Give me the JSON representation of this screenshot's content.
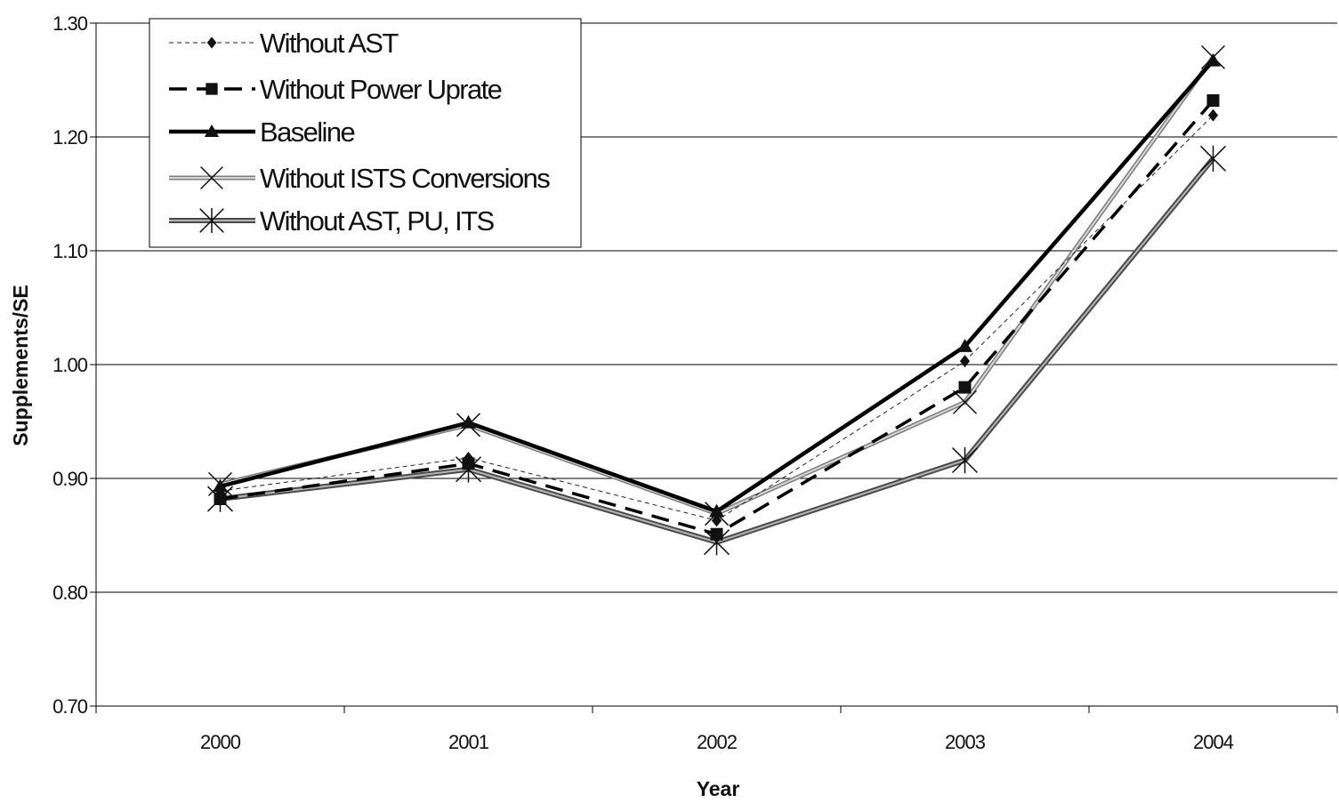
{
  "chart_data": {
    "type": "line",
    "xlabel": "Year",
    "ylabel": "Supplements/SE",
    "categories": [
      "2000",
      "2001",
      "2002",
      "2003",
      "2004"
    ],
    "ylim": [
      0.7,
      1.3
    ],
    "yticks": [
      "0.70",
      "0.80",
      "0.90",
      "1.00",
      "1.10",
      "1.20",
      "1.30"
    ],
    "grid": "horizontal",
    "legend_position": "top-left",
    "series": [
      {
        "name": "Without AST",
        "values": [
          0.889,
          0.918,
          0.863,
          1.003,
          1.219
        ],
        "color": "#333333",
        "style": "thin-dashed",
        "marker": "diamond"
      },
      {
        "name": "Without Power Uprate",
        "values": [
          0.882,
          0.913,
          0.851,
          0.98,
          1.232
        ],
        "color": "#111111",
        "style": "thick-dashed",
        "marker": "square"
      },
      {
        "name": "Baseline",
        "values": [
          0.893,
          0.949,
          0.871,
          1.016,
          1.267
        ],
        "color": "#000000",
        "style": "thick-solid",
        "marker": "triangle"
      },
      {
        "name": "Without ISTS Conversions",
        "values": [
          0.895,
          0.947,
          0.869,
          0.967,
          1.27
        ],
        "color": "#a8a8a8",
        "style": "double-light",
        "marker": "x"
      },
      {
        "name": "Without AST, PU, ITS",
        "values": [
          0.882,
          0.908,
          0.844,
          0.916,
          1.181
        ],
        "color": "#7a7a7a",
        "style": "double-dark",
        "marker": "asterisk"
      }
    ]
  }
}
